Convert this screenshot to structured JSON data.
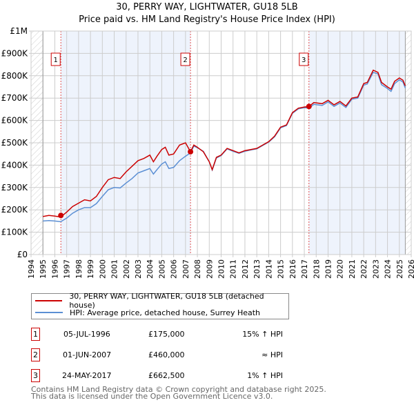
{
  "chart_data": {
    "type": "line",
    "title": "30, PERRY WAY, LIGHTWATER, GU18 5LB",
    "subtitle": "Price paid vs. HM Land Registry's House Price Index (HPI)",
    "xlim": [
      1994,
      2026
    ],
    "ylim": [
      0,
      1000000
    ],
    "x_ticks": [
      "1994",
      "1995",
      "1996",
      "1997",
      "1998",
      "1999",
      "2000",
      "2001",
      "2002",
      "2003",
      "2004",
      "2005",
      "2006",
      "2007",
      "2008",
      "2009",
      "2010",
      "2011",
      "2012",
      "2013",
      "2014",
      "2015",
      "2016",
      "2017",
      "2018",
      "2019",
      "2020",
      "2021",
      "2022",
      "2023",
      "2024",
      "2025",
      "2026"
    ],
    "y_ticks": [
      {
        "v": 0,
        "l": "£0"
      },
      {
        "v": 100000,
        "l": "£100K"
      },
      {
        "v": 200000,
        "l": "£200K"
      },
      {
        "v": 300000,
        "l": "£300K"
      },
      {
        "v": 400000,
        "l": "£400K"
      },
      {
        "v": 500000,
        "l": "£500K"
      },
      {
        "v": 600000,
        "l": "£600K"
      },
      {
        "v": 700000,
        "l": "£700K"
      },
      {
        "v": 800000,
        "l": "£800K"
      },
      {
        "v": 900000,
        "l": "£900K"
      },
      {
        "v": 1000000,
        "l": "£1M"
      }
    ],
    "x": [
      1995,
      1995.5,
      1996,
      1996.5,
      1997,
      1997.5,
      1998,
      1998.5,
      1999,
      1999.5,
      2000,
      2000.5,
      2001,
      2001.5,
      2002,
      2002.5,
      2003,
      2003.5,
      2004,
      2004.3,
      2004.6,
      2005,
      2005.3,
      2005.6,
      2006,
      2006.5,
      2007,
      2007.42,
      2007.7,
      2008,
      2008.5,
      2009,
      2009.25,
      2009.6,
      2010,
      2010.5,
      2011,
      2011.5,
      2012,
      2012.5,
      2013,
      2013.5,
      2014,
      2014.5,
      2015,
      2015.5,
      2016,
      2016.5,
      2017,
      2017.4,
      2017.8,
      2018.5,
      2019,
      2019.5,
      2020,
      2020.5,
      2021,
      2021.5,
      2022,
      2022.3,
      2022.8,
      2023.2,
      2023.5,
      2024,
      2024.3,
      2024.6,
      2025,
      2025.3,
      2025.5
    ],
    "series": [
      {
        "name": "30, PERRY WAY, LIGHTWATER, GU18 5LB (detached house)",
        "color": "#cc0000",
        "values": [
          170000,
          175000,
          172000,
          168000,
          190000,
          215000,
          230000,
          245000,
          240000,
          260000,
          300000,
          335000,
          345000,
          340000,
          370000,
          395000,
          420000,
          430000,
          445000,
          415000,
          440000,
          470000,
          480000,
          445000,
          450000,
          490000,
          500000,
          460000,
          490000,
          480000,
          460000,
          415000,
          380000,
          435000,
          445000,
          475000,
          465000,
          455000,
          465000,
          470000,
          475000,
          490000,
          505000,
          530000,
          570000,
          580000,
          635000,
          655000,
          660000,
          662500,
          680000,
          675000,
          690000,
          670000,
          685000,
          665000,
          700000,
          705000,
          765000,
          770000,
          825000,
          815000,
          770000,
          750000,
          740000,
          775000,
          790000,
          780000,
          755000
        ]
      },
      {
        "name": "HPI: Average price, detached house, Surrey Heath",
        "color": "#5b8fd4",
        "values": [
          150000,
          152000,
          150000,
          147000,
          163000,
          185000,
          200000,
          210000,
          210000,
          228000,
          260000,
          290000,
          300000,
          298000,
          320000,
          340000,
          365000,
          375000,
          385000,
          360000,
          380000,
          405000,
          415000,
          385000,
          390000,
          420000,
          440000,
          455000,
          485000,
          478000,
          462000,
          415000,
          378000,
          432000,
          443000,
          473000,
          462000,
          453000,
          462000,
          468000,
          473000,
          488000,
          503000,
          527000,
          567000,
          577000,
          632000,
          652000,
          657000,
          655000,
          672000,
          667000,
          683000,
          663000,
          678000,
          658000,
          695000,
          700000,
          758000,
          763000,
          815000,
          808000,
          760000,
          743000,
          730000,
          765000,
          782000,
          772000,
          745000
        ]
      }
    ],
    "sales": [
      {
        "n": "1",
        "x": 1996.51,
        "y": 175000
      },
      {
        "n": "2",
        "x": 2007.42,
        "y": 460000
      },
      {
        "n": "3",
        "x": 2017.39,
        "y": 662500
      }
    ]
  },
  "legend": {
    "property": "30, PERRY WAY, LIGHTWATER, GU18 5LB (detached house)",
    "hpi": "HPI: Average price, detached house, Surrey Heath"
  },
  "transactions": [
    {
      "n": "1",
      "date": "05-JUL-1996",
      "price": "£175,000",
      "vs": "15% ↑ HPI"
    },
    {
      "n": "2",
      "date": "01-JUN-2007",
      "price": "£460,000",
      "vs": "≈ HPI"
    },
    {
      "n": "3",
      "date": "24-MAY-2017",
      "price": "£662,500",
      "vs": "1% ↑ HPI"
    }
  ],
  "footer": {
    "line1": "Contains HM Land Registry data © Crown copyright and database right 2025.",
    "line2": "This data is licensed under the Open Government Licence v3.0."
  }
}
